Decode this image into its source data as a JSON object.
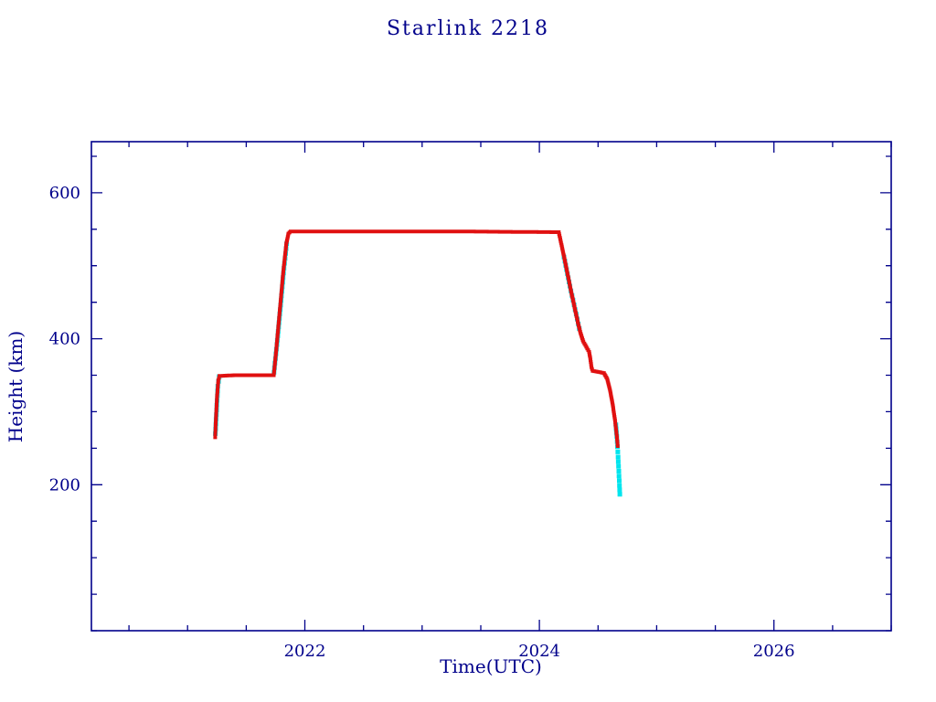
{
  "page": {
    "background": "#ffffff"
  },
  "chart_data": {
    "type": "scatter",
    "title": "Starlink 2218",
    "xlabel": "Time(UTC)",
    "ylabel": "Height (km)",
    "xlim": [
      2020.18,
      2027.0
    ],
    "ylim": [
      0,
      670
    ],
    "xticks": [
      2022,
      2024,
      2026
    ],
    "yticks": [
      200,
      400,
      600
    ],
    "x_minor_step": 0.5,
    "y_minor_step": 50,
    "grid": false,
    "legend_position": "none",
    "axis_color": "#00008B",
    "text_color": "#00008B",
    "series": [
      {
        "name": "cyan-track",
        "color": "#00E5EE",
        "marker_size": 5,
        "spacing": 5,
        "segments": [
          [
            [
              2021.237,
              270
            ],
            [
              2021.258,
              335
            ],
            [
              2021.27,
              348
            ]
          ],
          [
            [
              2021.737,
              354
            ],
            [
              2021.762,
              392
            ],
            [
              2021.79,
              440
            ],
            [
              2021.818,
              490
            ],
            [
              2021.845,
              530
            ]
          ],
          [
            [
              2024.21,
              512
            ],
            [
              2024.26,
              472
            ],
            [
              2024.305,
              440
            ],
            [
              2024.34,
              414
            ]
          ],
          [
            [
              2024.652,
              282
            ],
            [
              2024.66,
              266
            ],
            [
              2024.666,
              252
            ],
            [
              2024.671,
              238
            ],
            [
              2024.675,
              225
            ],
            [
              2024.679,
              212
            ],
            [
              2024.683,
              199
            ],
            [
              2024.686,
              187
            ]
          ]
        ]
      },
      {
        "name": "red-track",
        "color": "#E01010",
        "marker_size": 4,
        "spacing": 2,
        "segments": [
          [
            [
              2021.235,
              265
            ],
            [
              2021.242,
              292
            ],
            [
              2021.252,
              322
            ],
            [
              2021.262,
              343
            ],
            [
              2021.272,
              349
            ],
            [
              2021.4,
              350
            ],
            [
              2021.55,
              350
            ],
            [
              2021.735,
              350
            ],
            [
              2021.758,
              388
            ],
            [
              2021.786,
              438
            ],
            [
              2021.815,
              490
            ],
            [
              2021.842,
              530
            ],
            [
              2021.86,
              544
            ],
            [
              2021.878,
              547
            ],
            [
              2022.5,
              547
            ],
            [
              2023.3,
              547
            ],
            [
              2024.165,
              546
            ],
            [
              2024.195,
              524
            ],
            [
              2024.23,
              497
            ],
            [
              2024.265,
              469
            ],
            [
              2024.3,
              443
            ],
            [
              2024.33,
              421
            ],
            [
              2024.352,
              407
            ],
            [
              2024.375,
              396
            ],
            [
              2024.4,
              389
            ],
            [
              2024.424,
              382
            ],
            [
              2024.434,
              373
            ],
            [
              2024.444,
              361
            ],
            [
              2024.454,
              356
            ],
            [
              2024.55,
              353
            ],
            [
              2024.578,
              345
            ],
            [
              2024.602,
              330
            ],
            [
              2024.625,
              310
            ],
            [
              2024.645,
              288
            ],
            [
              2024.66,
              267
            ],
            [
              2024.668,
              253
            ]
          ]
        ]
      }
    ]
  }
}
